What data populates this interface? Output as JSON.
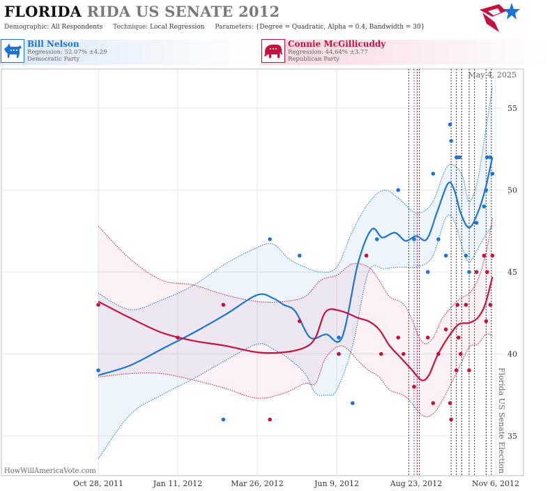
{
  "header": {
    "title_part1": "FLORIDA",
    "title_part2": "RIDA US SENATE 2012",
    "demographic_label": "Demographic:",
    "demographic_value": "All Respondents",
    "technique_label": "Technique:",
    "technique_value": "Local Regression",
    "parameters_label": "Parameters:",
    "parameters_value": "{Degree = Quadratic, Alpha = 0.4, Bandwidth = 30}"
  },
  "candidates": [
    {
      "name": "Bill Nelson",
      "regression": "Regression: 52.07% ±4.29",
      "party": "Democratic Party",
      "color": "#1a73d9",
      "icon": "donkey-icon"
    },
    {
      "name": "Connie McGillicuddy",
      "regression": "Regression: 44.64% ±3.77",
      "party": "Republican Party",
      "color": "#c8103e",
      "icon": "elephant-icon"
    }
  ],
  "footer": {
    "site": "HowWillAmericaVote.com",
    "date": "May 4, 2025",
    "vertical_label": "Florida US Senate Election"
  },
  "chart_data": {
    "type": "scatter",
    "x_axis": {
      "tick_labels": [
        "Oct 28, 2011",
        "Jan 11, 2012",
        "Mar 26, 2012",
        "Jun 9, 2012",
        "Aug 23, 2012",
        "Nov 6, 2012"
      ],
      "tick_days": [
        0,
        75,
        150,
        225,
        300,
        375
      ],
      "range_days": [
        -10,
        382
      ]
    },
    "y_axis": {
      "ticks": [
        35,
        40,
        45,
        50,
        55
      ],
      "range": [
        32.8,
        58.3
      ],
      "position": "right"
    },
    "grid": true,
    "series": [
      {
        "name": "Bill Nelson",
        "color": "#1a73d9",
        "points": [
          [
            0,
            39
          ],
          [
            118,
            36
          ],
          [
            162,
            47
          ],
          [
            190,
            46
          ],
          [
            227,
            41
          ],
          [
            240,
            37
          ],
          [
            263,
            47
          ],
          [
            283,
            50
          ],
          [
            298,
            47
          ],
          [
            311,
            45
          ],
          [
            316,
            51
          ],
          [
            321,
            47
          ],
          [
            328,
            46
          ],
          [
            332,
            54
          ],
          [
            333,
            53
          ],
          [
            338,
            52
          ],
          [
            339,
            52
          ],
          [
            341,
            52
          ],
          [
            347,
            46
          ],
          [
            350,
            45
          ],
          [
            357,
            48
          ],
          [
            364,
            49
          ],
          [
            366,
            50
          ],
          [
            367,
            52
          ],
          [
            370,
            52
          ],
          [
            372,
            51
          ]
        ],
        "trend": [
          [
            0,
            38.7
          ],
          [
            30,
            39.3
          ],
          [
            60,
            40.3
          ],
          [
            90,
            41.3
          ],
          [
            120,
            42.4
          ],
          [
            150,
            43.6
          ],
          [
            165,
            43.4
          ],
          [
            175,
            43.0
          ],
          [
            186,
            42.6
          ],
          [
            200,
            41.0
          ],
          [
            215,
            41.2
          ],
          [
            230,
            41.0
          ],
          [
            245,
            45.5
          ],
          [
            258,
            47.6
          ],
          [
            268,
            47.1
          ],
          [
            280,
            47.4
          ],
          [
            290,
            46.9
          ],
          [
            300,
            47.2
          ],
          [
            310,
            47.0
          ],
          [
            320,
            48.7
          ],
          [
            330,
            50.4
          ],
          [
            336,
            50.0
          ],
          [
            342,
            48.6
          ],
          [
            350,
            47.7
          ],
          [
            358,
            48.6
          ],
          [
            365,
            50.0
          ],
          [
            372,
            52.0
          ]
        ],
        "upper": [
          [
            0,
            43.7
          ],
          [
            30,
            42.7
          ],
          [
            60,
            43.3
          ],
          [
            90,
            44.2
          ],
          [
            120,
            45.5
          ],
          [
            150,
            46.5
          ],
          [
            165,
            46.7
          ],
          [
            180,
            45.8
          ],
          [
            195,
            45.3
          ],
          [
            210,
            45.0
          ],
          [
            225,
            45.3
          ],
          [
            240,
            47.5
          ],
          [
            255,
            49.2
          ],
          [
            270,
            50.0
          ],
          [
            285,
            49.4
          ],
          [
            300,
            48.6
          ],
          [
            315,
            49.2
          ],
          [
            328,
            51.3
          ],
          [
            336,
            51.5
          ],
          [
            344,
            50.8
          ],
          [
            350,
            49.3
          ],
          [
            358,
            50.6
          ],
          [
            366,
            53.8
          ],
          [
            372,
            56.3
          ]
        ],
        "lower": [
          [
            0,
            33.6
          ],
          [
            30,
            36.3
          ],
          [
            60,
            37.5
          ],
          [
            90,
            38.5
          ],
          [
            120,
            39.6
          ],
          [
            150,
            40.6
          ],
          [
            165,
            40.3
          ],
          [
            180,
            39.7
          ],
          [
            195,
            38.8
          ],
          [
            205,
            37.6
          ],
          [
            215,
            37.5
          ],
          [
            225,
            37.8
          ],
          [
            240,
            40.5
          ],
          [
            255,
            45.0
          ],
          [
            270,
            45.2
          ],
          [
            285,
            45.3
          ],
          [
            300,
            45.3
          ],
          [
            315,
            45.9
          ],
          [
            328,
            48.3
          ],
          [
            336,
            48.1
          ],
          [
            344,
            46.4
          ],
          [
            350,
            45.6
          ],
          [
            358,
            46.4
          ],
          [
            366,
            47.3
          ],
          [
            372,
            47.8
          ]
        ]
      },
      {
        "name": "Connie McGillicuddy",
        "color": "#c8103e",
        "points": [
          [
            0,
            43
          ],
          [
            75,
            41
          ],
          [
            118,
            43
          ],
          [
            162,
            36
          ],
          [
            190,
            42
          ],
          [
            227,
            40
          ],
          [
            253,
            46
          ],
          [
            267,
            40
          ],
          [
            283,
            41
          ],
          [
            288,
            40
          ],
          [
            298,
            38
          ],
          [
            311,
            41
          ],
          [
            316,
            37
          ],
          [
            321,
            40
          ],
          [
            328,
            41.5
          ],
          [
            332,
            37
          ],
          [
            333,
            36
          ],
          [
            338,
            39
          ],
          [
            339,
            43
          ],
          [
            340,
            41
          ],
          [
            342,
            40
          ],
          [
            347,
            43
          ],
          [
            350,
            39
          ],
          [
            357,
            45
          ],
          [
            364,
            46
          ],
          [
            366,
            42
          ],
          [
            367,
            45
          ],
          [
            370,
            43
          ],
          [
            372,
            46
          ]
        ],
        "trend": [
          [
            0,
            43.2
          ],
          [
            30,
            42.2
          ],
          [
            60,
            41.3
          ],
          [
            90,
            40.8
          ],
          [
            120,
            40.5
          ],
          [
            150,
            40.1
          ],
          [
            175,
            40.1
          ],
          [
            195,
            40.4
          ],
          [
            205,
            41.0
          ],
          [
            215,
            42.6
          ],
          [
            230,
            42.6
          ],
          [
            245,
            42.2
          ],
          [
            255,
            42.0
          ],
          [
            265,
            41.5
          ],
          [
            275,
            40.5
          ],
          [
            285,
            39.8
          ],
          [
            295,
            39.1
          ],
          [
            305,
            38.4
          ],
          [
            312,
            38.7
          ],
          [
            320,
            39.9
          ],
          [
            330,
            41.0
          ],
          [
            340,
            41.8
          ],
          [
            350,
            41.9
          ],
          [
            358,
            42.2
          ],
          [
            365,
            43.0
          ],
          [
            372,
            44.7
          ]
        ],
        "upper": [
          [
            0,
            47.8
          ],
          [
            30,
            45.8
          ],
          [
            60,
            44.5
          ],
          [
            90,
            44.2
          ],
          [
            120,
            43.6
          ],
          [
            150,
            43.2
          ],
          [
            175,
            43.2
          ],
          [
            195,
            43.5
          ],
          [
            210,
            44.5
          ],
          [
            225,
            44.8
          ],
          [
            240,
            45.5
          ],
          [
            255,
            45.3
          ],
          [
            265,
            44.5
          ],
          [
            275,
            43.5
          ],
          [
            290,
            42.9
          ],
          [
            305,
            40.8
          ],
          [
            315,
            40.9
          ],
          [
            325,
            42.2
          ],
          [
            340,
            43.3
          ],
          [
            350,
            43.7
          ],
          [
            358,
            44.5
          ],
          [
            366,
            46.2
          ],
          [
            372,
            48.3
          ]
        ],
        "lower": [
          [
            0,
            38.6
          ],
          [
            30,
            38.8
          ],
          [
            60,
            38.8
          ],
          [
            90,
            38.4
          ],
          [
            120,
            37.9
          ],
          [
            150,
            37.3
          ],
          [
            175,
            37.6
          ],
          [
            195,
            38.2
          ],
          [
            205,
            38.2
          ],
          [
            215,
            39.8
          ],
          [
            230,
            40.5
          ],
          [
            245,
            39.6
          ],
          [
            255,
            39.0
          ],
          [
            265,
            38.6
          ],
          [
            275,
            37.8
          ],
          [
            290,
            37.4
          ],
          [
            305,
            36.3
          ],
          [
            315,
            36.3
          ],
          [
            325,
            37.2
          ],
          [
            340,
            39.1
          ],
          [
            350,
            40.4
          ],
          [
            358,
            40.6
          ],
          [
            366,
            41.2
          ],
          [
            372,
            41.1
          ]
        ]
      }
    ],
    "event_lines": [
      {
        "day": 293,
        "color": "#333333"
      },
      {
        "day": 298,
        "color": "#1a73d9"
      },
      {
        "day": 301,
        "color": "#c8103e"
      },
      {
        "day": 303,
        "color": "#333333"
      },
      {
        "day": 333,
        "color": "#333333"
      },
      {
        "day": 338,
        "color": "#333333"
      },
      {
        "day": 343,
        "color": "#333333"
      },
      {
        "day": 350,
        "color": "#333333"
      },
      {
        "day": 355,
        "color": "#333333"
      },
      {
        "day": 366,
        "color": "#333333"
      },
      {
        "day": 371,
        "color": "#333333"
      }
    ]
  }
}
